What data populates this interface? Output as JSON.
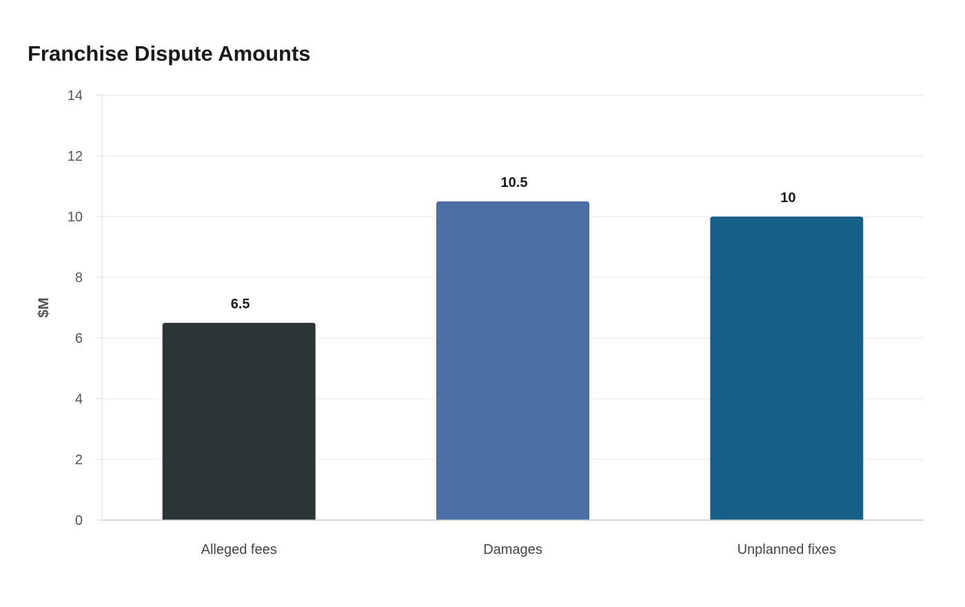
{
  "chart_data": {
    "type": "bar",
    "title": "Franchise Dispute Amounts",
    "xlabel": "",
    "ylabel": "$M",
    "categories": [
      "Alleged fees",
      "Damages",
      "Unplanned fixes"
    ],
    "values": [
      6.5,
      10.5,
      10
    ],
    "data_labels": [
      "6.5",
      "10.5",
      "10"
    ],
    "colors": [
      "#2d3436",
      "#4a6fa5",
      "#166088"
    ],
    "ylim": [
      0,
      14
    ],
    "yticks": [
      0,
      2,
      4,
      6,
      8,
      10,
      12,
      14
    ],
    "grid": true,
    "legend": "none"
  }
}
